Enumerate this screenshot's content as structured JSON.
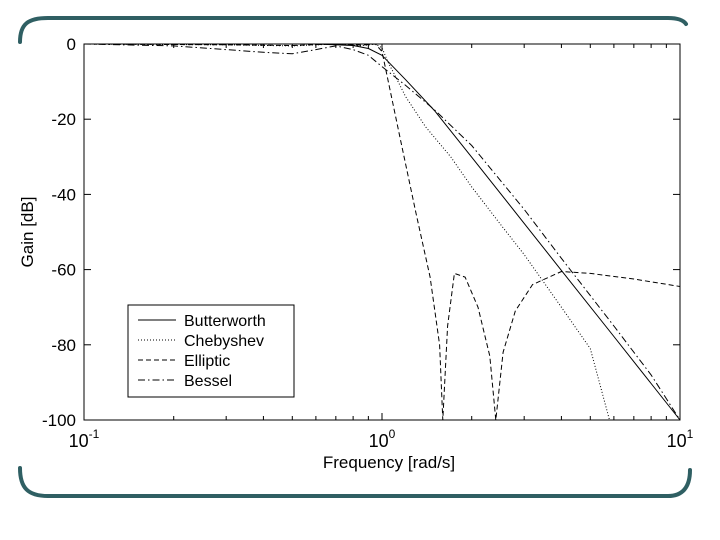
{
  "chart_data": {
    "type": "line",
    "xlabel": "Frequency [rad/s]",
    "ylabel": "Gain [dB]",
    "xscale": "log",
    "xlim": [
      0.1,
      10
    ],
    "ylim": [
      -100,
      0
    ],
    "x_ticks": [
      {
        "value": 0.1,
        "base": "10",
        "exp": "-1"
      },
      {
        "value": 1,
        "base": "10",
        "exp": "0"
      },
      {
        "value": 10,
        "base": "10",
        "exp": "1"
      }
    ],
    "y_ticks": [
      {
        "value": 0,
        "label": "0"
      },
      {
        "value": -20,
        "label": "-20"
      },
      {
        "value": -40,
        "label": "-40"
      },
      {
        "value": -60,
        "label": "-60"
      },
      {
        "value": -80,
        "label": "-80"
      },
      {
        "value": -100,
        "label": "-100"
      }
    ],
    "grid": false,
    "legend_position": "bottom-left",
    "series": [
      {
        "name": "Butterworth",
        "style": "solid",
        "x": [
          0.1,
          0.2,
          0.4,
          0.6,
          0.8,
          0.9,
          1.0,
          1.2,
          1.5,
          2,
          3,
          4,
          6,
          8,
          10
        ],
        "y": [
          0,
          0,
          0,
          -0.01,
          -0.4,
          -1.2,
          -3,
          -9.5,
          -17.7,
          -30.1,
          -47.7,
          -60.2,
          -77.8,
          -90.3,
          -100
        ]
      },
      {
        "name": "Chebyshev",
        "style": "dotted",
        "x": [
          0.1,
          0.3,
          0.5,
          0.7,
          0.85,
          0.95,
          1.0,
          1.05,
          1.1,
          1.2,
          1.4,
          1.7,
          2,
          2.5,
          3,
          4,
          5,
          5.8
        ],
        "y": [
          0,
          -0.2,
          -0.5,
          0,
          -0.5,
          0,
          -1,
          -5,
          -8,
          -14,
          -22,
          -30,
          -38,
          -48,
          -56,
          -70,
          -81,
          -100
        ]
      },
      {
        "name": "Elliptic",
        "style": "dashed",
        "x": [
          0.1,
          0.3,
          0.5,
          0.7,
          0.85,
          0.95,
          1.0,
          1.05,
          1.15,
          1.3,
          1.45,
          1.56,
          1.6,
          1.66,
          1.75,
          1.9,
          2.1,
          2.3,
          2.41,
          2.55,
          2.8,
          3.2,
          4,
          5,
          7,
          10
        ],
        "y": [
          0,
          -0.2,
          -0.4,
          0,
          -0.3,
          0,
          -2,
          -10,
          -25,
          -45,
          -62,
          -80,
          -100,
          -75,
          -61,
          -62,
          -70,
          -83,
          -100,
          -82,
          -71,
          -64,
          -60.5,
          -61,
          -62.5,
          -64.5
        ]
      },
      {
        "name": "Bessel",
        "style": "dashdot",
        "x": [
          0.1,
          0.2,
          0.3,
          0.4,
          0.5,
          0.6,
          0.7,
          0.8,
          0.9,
          1.0,
          1.2,
          1.5,
          2,
          3,
          4,
          6,
          8,
          10
        ],
        "y": [
          0,
          -0.5,
          -1.5,
          -2.2,
          -2.6,
          -1.5,
          -0.5,
          -1.5,
          -3,
          -6,
          -11,
          -17.5,
          -27,
          -44,
          -57,
          -75,
          -88,
          -100
        ]
      }
    ]
  }
}
